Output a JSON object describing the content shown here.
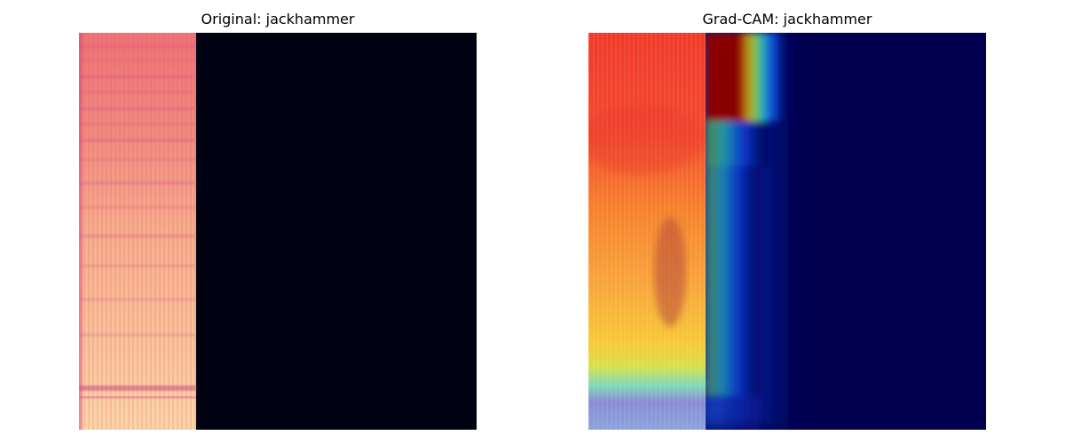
{
  "panels": [
    {
      "title": "Original: jackhammer",
      "kind": "spectrogram",
      "colormap": "magma",
      "background_color": "#000212"
    },
    {
      "title": "Grad-CAM: jackhammer",
      "kind": "gradcam-overlay",
      "colormap": "jet",
      "background_color": "#00004f"
    }
  ]
}
